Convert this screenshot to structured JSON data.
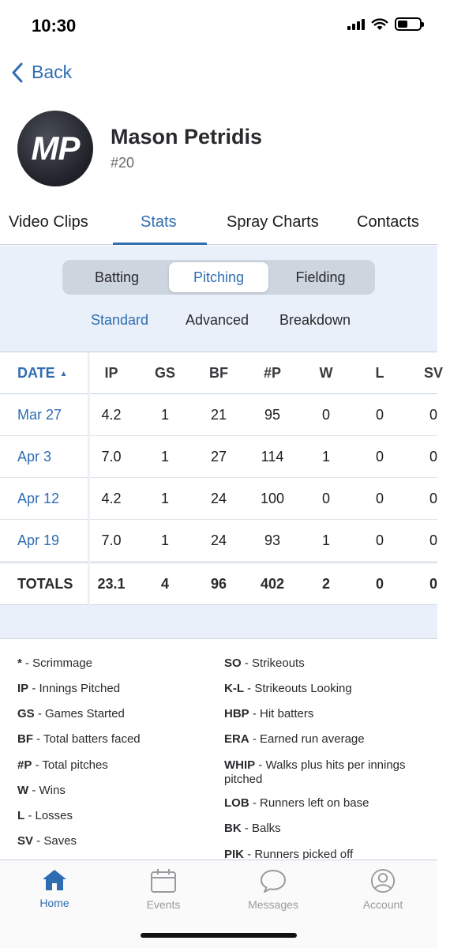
{
  "status_bar": {
    "time": "10:30"
  },
  "nav": {
    "back_label": "Back"
  },
  "player": {
    "initials": "MP",
    "name": "Mason Petridis",
    "number": "#20"
  },
  "main_tabs": [
    "Video Clips",
    "Stats",
    "Spray Charts",
    "Contacts"
  ],
  "segments": [
    "Batting",
    "Pitching",
    "Fielding"
  ],
  "subtabs": [
    "Standard",
    "Advanced",
    "Breakdown"
  ],
  "table": {
    "headers": [
      "DATE",
      "IP",
      "GS",
      "BF",
      "#P",
      "W",
      "L",
      "SV"
    ],
    "sort_indicator": "▲",
    "rows": [
      [
        "Mar 27",
        "4.2",
        "1",
        "21",
        "95",
        "0",
        "0",
        "0"
      ],
      [
        "Apr 3",
        "7.0",
        "1",
        "27",
        "114",
        "1",
        "0",
        "0"
      ],
      [
        "Apr 12",
        "4.2",
        "1",
        "24",
        "100",
        "0",
        "0",
        "0"
      ],
      [
        "Apr 19",
        "7.0",
        "1",
        "24",
        "93",
        "1",
        "0",
        "0"
      ]
    ],
    "totals": [
      "TOTALS",
      "23.1",
      "4",
      "96",
      "402",
      "2",
      "0",
      "0"
    ]
  },
  "legend": {
    "left": [
      {
        "abbr": "*",
        "desc": " - Scrimmage"
      },
      {
        "abbr": "IP",
        "desc": " - Innings Pitched"
      },
      {
        "abbr": "GS",
        "desc": " - Games Started"
      },
      {
        "abbr": "BF",
        "desc": " - Total batters faced"
      },
      {
        "abbr": "#P",
        "desc": " - Total pitches"
      },
      {
        "abbr": "W",
        "desc": " - Wins"
      },
      {
        "abbr": "L",
        "desc": " - Losses"
      },
      {
        "abbr": "SV",
        "desc": " - Saves"
      }
    ],
    "right": [
      {
        "abbr": "SO",
        "desc": " - Strikeouts"
      },
      {
        "abbr": "K-L",
        "desc": " - Strikeouts Looking"
      },
      {
        "abbr": "HBP",
        "desc": " - Hit batters"
      },
      {
        "abbr": "ERA",
        "desc": " - Earned run average"
      },
      {
        "abbr": "WHIP",
        "desc": " - Walks plus hits per innings pitched"
      },
      {
        "abbr": "LOB",
        "desc": " - Runners left on base"
      },
      {
        "abbr": "BK",
        "desc": " - Balks"
      },
      {
        "abbr": "PIK",
        "desc": " - Runners picked off"
      }
    ]
  },
  "bottom_nav": [
    {
      "label": "Home",
      "icon": "home-icon"
    },
    {
      "label": "Events",
      "icon": "calendar-icon"
    },
    {
      "label": "Messages",
      "icon": "chat-bubble-icon"
    },
    {
      "label": "Account",
      "icon": "account-icon"
    }
  ],
  "colors": {
    "accent": "#2f6db3",
    "panel_bg": "#e9f0f9",
    "inactive_nav": "#9a9a9f"
  }
}
